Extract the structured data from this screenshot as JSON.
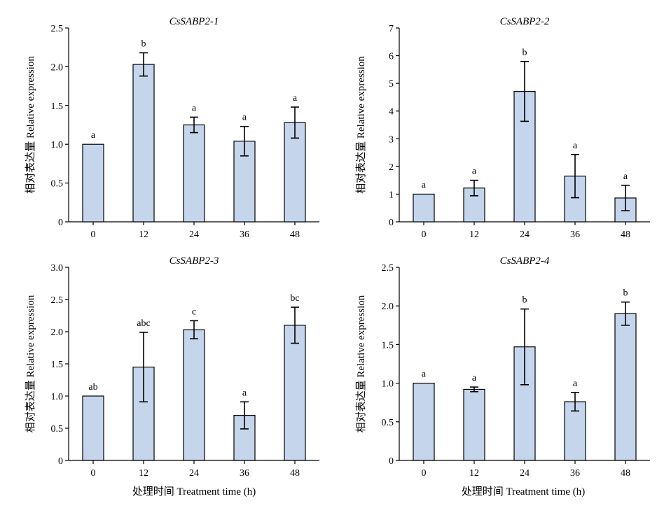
{
  "chart_data": [
    {
      "type": "bar",
      "title": "CsSABP2-1",
      "ylabel": "相对表达量 Relative expression",
      "categories": [
        "0",
        "12",
        "24",
        "36",
        "48"
      ],
      "values": [
        1.0,
        2.03,
        1.25,
        1.04,
        1.28
      ],
      "errors": [
        0,
        0.15,
        0.1,
        0.19,
        0.2
      ],
      "significance": [
        "a",
        "b",
        "a",
        "a",
        "a"
      ],
      "ylim": [
        0,
        2.5
      ],
      "yticks": [
        "0",
        "0.5",
        "1.0",
        "1.5",
        "2.0",
        "2.5"
      ],
      "color": "#c5d5ec"
    },
    {
      "type": "bar",
      "title": "CsSABP2-2",
      "ylabel": "相对表达量 Relative expression",
      "categories": [
        "0",
        "12",
        "24",
        "36",
        "48"
      ],
      "values": [
        1.0,
        1.22,
        4.71,
        1.65,
        0.86
      ],
      "errors": [
        0,
        0.28,
        1.08,
        0.78,
        0.46
      ],
      "significance": [
        "a",
        "a",
        "b",
        "a",
        "a"
      ],
      "ylim": [
        0,
        7
      ],
      "yticks": [
        "0",
        "1",
        "2",
        "3",
        "4",
        "5",
        "6",
        "7"
      ],
      "color": "#c5d5ec"
    },
    {
      "type": "bar",
      "title": "CsSABP2-3",
      "ylabel": "相对表达量 Relative expression",
      "categories": [
        "0",
        "12",
        "24",
        "36",
        "48"
      ],
      "values": [
        1.0,
        1.45,
        2.03,
        0.7,
        2.1
      ],
      "errors": [
        0,
        0.54,
        0.14,
        0.21,
        0.28
      ],
      "significance": [
        "ab",
        "abc",
        "c",
        "a",
        "bc"
      ],
      "ylim": [
        0,
        3.0
      ],
      "yticks": [
        "0",
        "0.5",
        "1.0",
        "1.5",
        "2.0",
        "2.5",
        "3.0"
      ],
      "color": "#c5d5ec"
    },
    {
      "type": "bar",
      "title": "CsSABP2-4",
      "ylabel": "相对表达量 Relative expression",
      "categories": [
        "0",
        "12",
        "24",
        "36",
        "48"
      ],
      "values": [
        1.0,
        0.92,
        1.47,
        0.76,
        1.9
      ],
      "errors": [
        0,
        0.03,
        0.49,
        0.12,
        0.15
      ],
      "significance": [
        "a",
        "a",
        "b",
        "a",
        "b"
      ],
      "ylim": [
        0,
        2.5
      ],
      "yticks": [
        "0",
        "0.5",
        "1.0",
        "1.5",
        "2.0",
        "2.5"
      ],
      "color": "#c5d5ec"
    }
  ],
  "xlabel": "处理时间 Treatment time (h)"
}
